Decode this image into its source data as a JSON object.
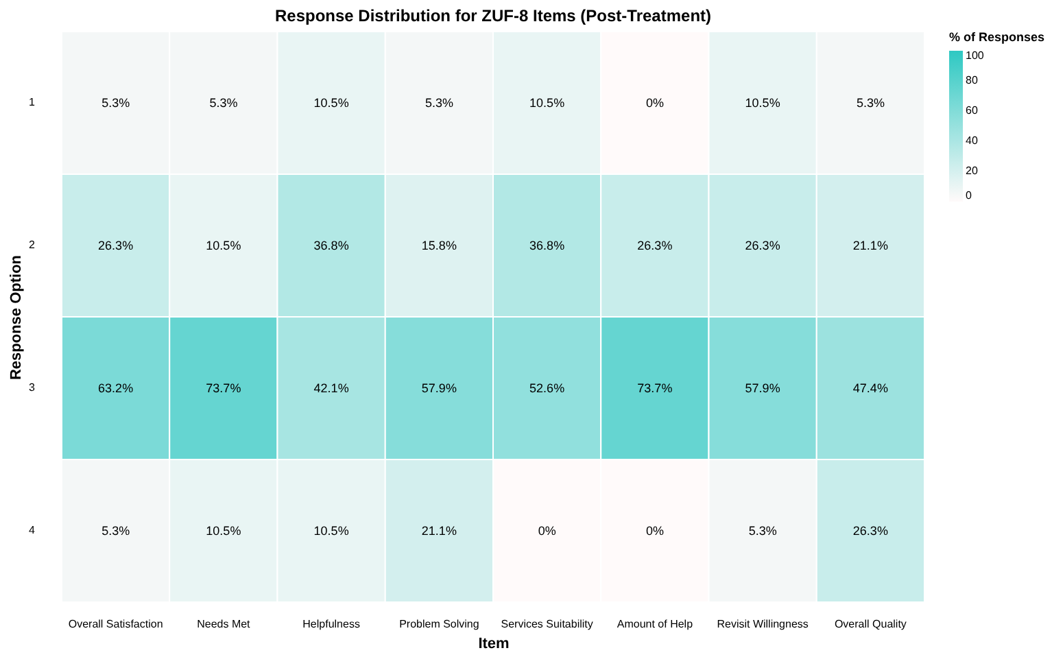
{
  "chart_data": {
    "type": "heatmap",
    "title": "Response Distribution for ZUF-8 Items (Post-Treatment)",
    "xlabel": "Item",
    "ylabel": "Response Option",
    "clabel": "% of Responses",
    "categories": [
      "Overall Satisfaction",
      "Needs Met",
      "Helpfulness",
      "Problem Solving",
      "Services Suitability",
      "Amount of Help",
      "Revisit Willingness",
      "Overall Quality"
    ],
    "y_categories": [
      "1",
      "2",
      "3",
      "4"
    ],
    "cells": [
      [
        5.3,
        5.3,
        10.5,
        5.3,
        10.5,
        0,
        10.5,
        5.3
      ],
      [
        26.3,
        10.5,
        36.8,
        15.8,
        36.8,
        26.3,
        26.3,
        21.1
      ],
      [
        63.2,
        73.7,
        42.1,
        57.9,
        52.6,
        73.7,
        57.9,
        47.4
      ],
      [
        5.3,
        10.5,
        10.5,
        21.1,
        0,
        0,
        5.3,
        26.3
      ]
    ],
    "cell_labels": [
      [
        "5.3%",
        "5.3%",
        "10.5%",
        "5.3%",
        "10.5%",
        "0%",
        "10.5%",
        "5.3%"
      ],
      [
        "26.3%",
        "10.5%",
        "36.8%",
        "15.8%",
        "36.8%",
        "26.3%",
        "26.3%",
        "21.1%"
      ],
      [
        "63.2%",
        "73.7%",
        "42.1%",
        "57.9%",
        "52.6%",
        "73.7%",
        "57.9%",
        "47.4%"
      ],
      [
        "5.3%",
        "10.5%",
        "10.5%",
        "21.1%",
        "0%",
        "0%",
        "5.3%",
        "26.3%"
      ]
    ],
    "clim": [
      0,
      100
    ],
    "cticks": [
      0,
      20,
      40,
      60,
      80,
      100
    ]
  }
}
